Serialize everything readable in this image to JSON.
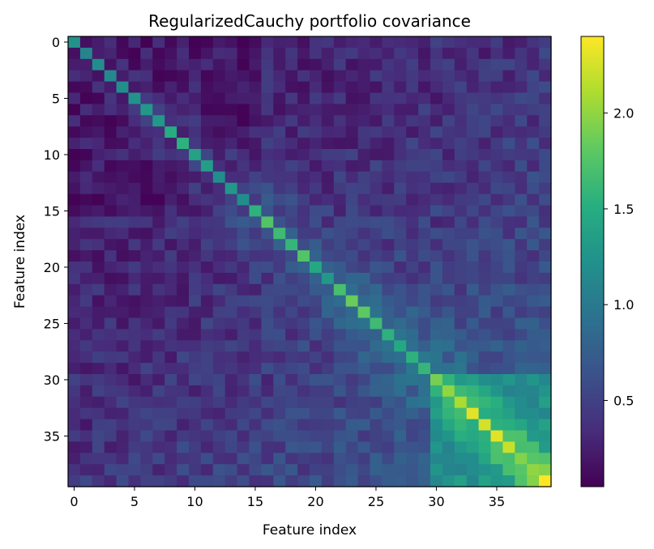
{
  "chart_data": {
    "type": "heatmap",
    "title": "RegularizedCauchy portfolio covariance",
    "xlabel": "Feature index",
    "ylabel": "Feature index",
    "size": 40,
    "x_ticks": [
      0,
      5,
      10,
      15,
      20,
      25,
      30,
      35
    ],
    "y_ticks": [
      0,
      5,
      10,
      15,
      20,
      25,
      30,
      35
    ],
    "colormap": "viridis",
    "color_range": [
      0.05,
      2.4
    ],
    "colorbar_ticks": [
      0.5,
      1.0,
      1.5,
      2.0
    ],
    "diagonal_values": [
      1.25,
      1.1,
      1.2,
      1.15,
      1.2,
      1.25,
      1.3,
      1.3,
      1.5,
      1.55,
      1.4,
      1.35,
      1.2,
      1.3,
      1.2,
      1.55,
      1.75,
      1.65,
      1.6,
      1.75,
      1.45,
      1.3,
      1.7,
      1.85,
      1.8,
      1.65,
      1.55,
      1.45,
      1.55,
      1.6,
      1.9,
      2.0,
      2.1,
      2.3,
      2.25,
      2.3,
      2.2,
      1.95,
      2.0,
      2.4
    ],
    "off_diagonal_structure": "values mostly 0.1-0.6 in the upper-left block; band near the diagonal increases toward the lower-right; block of rows/cols 30-39 ranges roughly 0.9-1.9"
  }
}
